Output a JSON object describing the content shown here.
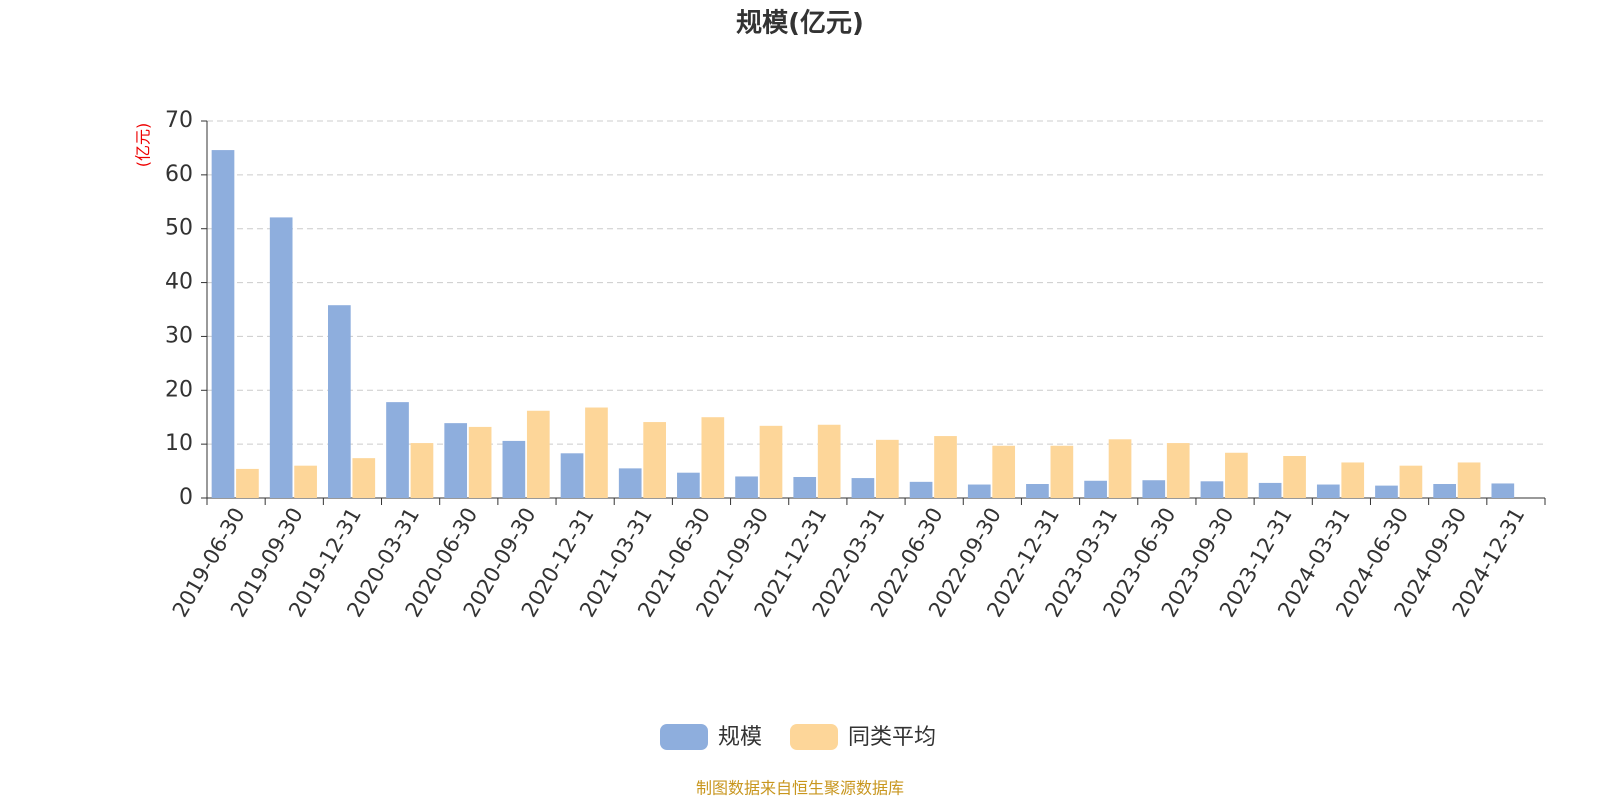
{
  "chart_data": {
    "type": "bar",
    "title": "规模(亿元)",
    "y_label": "(亿元)",
    "source": "制图数据来自恒生聚源数据库",
    "categories": [
      "2019-06-30",
      "2019-09-30",
      "2019-12-31",
      "2020-03-31",
      "2020-06-30",
      "2020-09-30",
      "2020-12-31",
      "2021-03-31",
      "2021-06-30",
      "2021-09-30",
      "2021-12-31",
      "2022-03-31",
      "2022-06-30",
      "2022-09-30",
      "2022-12-31",
      "2023-03-31",
      "2023-06-30",
      "2023-09-30",
      "2023-12-31",
      "2024-03-31",
      "2024-06-30",
      "2024-09-30",
      "2024-12-31"
    ],
    "series": [
      {
        "name": "规模",
        "color": "#8eaedd",
        "values": [
          64.6,
          52.1,
          35.8,
          17.8,
          13.9,
          10.6,
          8.3,
          5.5,
          4.7,
          4.0,
          3.9,
          3.7,
          3.0,
          2.5,
          2.6,
          3.2,
          3.3,
          3.1,
          2.8,
          2.5,
          2.3,
          2.6,
          2.7
        ]
      },
      {
        "name": "同类平均",
        "color": "#fdd699",
        "values": [
          5.4,
          6.0,
          7.4,
          10.2,
          13.2,
          16.2,
          16.8,
          14.1,
          15.0,
          13.4,
          13.6,
          10.8,
          11.5,
          9.7,
          9.7,
          10.9,
          10.2,
          8.4,
          7.8,
          6.6,
          6.0,
          6.6,
          null
        ]
      }
    ],
    "ylim": [
      0,
      70
    ],
    "yticks": [
      0,
      10,
      20,
      30,
      40,
      50,
      60,
      70
    ],
    "grid": true
  }
}
